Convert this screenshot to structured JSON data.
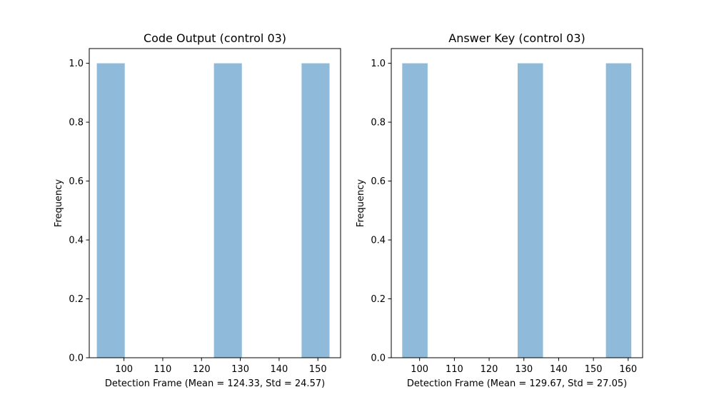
{
  "colors": {
    "bar": "#8fbad9",
    "axis": "#000000",
    "background": "#ffffff"
  },
  "chart_data": [
    {
      "type": "bar",
      "title": "Code Output (control 03)",
      "xlabel": "Detection Frame (Mean = 124.33, Std = 24.57)",
      "ylabel": "Frequency",
      "xlim": [
        91.05,
        155.85
      ],
      "ylim": [
        0,
        1.05
      ],
      "xticks": [
        100,
        110,
        120,
        130,
        140,
        150
      ],
      "yticks": [
        0.0,
        0.2,
        0.4,
        0.6,
        0.8,
        1.0
      ],
      "bins": [
        {
          "start": 93.0,
          "end": 100.2,
          "value": 1
        },
        {
          "start": 123.2,
          "end": 130.4,
          "value": 1
        },
        {
          "start": 145.8,
          "end": 153.0,
          "value": 1
        }
      ],
      "grid": false,
      "legend": false
    },
    {
      "type": "bar",
      "title": "Answer Key (control 03)",
      "xlabel": "Detection Frame (Mean = 129.67, Std = 27.05)",
      "ylabel": "Frequency",
      "xlim": [
        91.85,
        164.15
      ],
      "ylim": [
        0,
        1.05
      ],
      "xticks": [
        100,
        110,
        120,
        130,
        140,
        150,
        160
      ],
      "yticks": [
        0.0,
        0.2,
        0.4,
        0.6,
        0.8,
        1.0
      ],
      "bins": [
        {
          "start": 95.0,
          "end": 102.3,
          "value": 1
        },
        {
          "start": 128.2,
          "end": 135.5,
          "value": 1
        },
        {
          "start": 153.6,
          "end": 160.9,
          "value": 1
        }
      ],
      "grid": false,
      "legend": false
    }
  ]
}
